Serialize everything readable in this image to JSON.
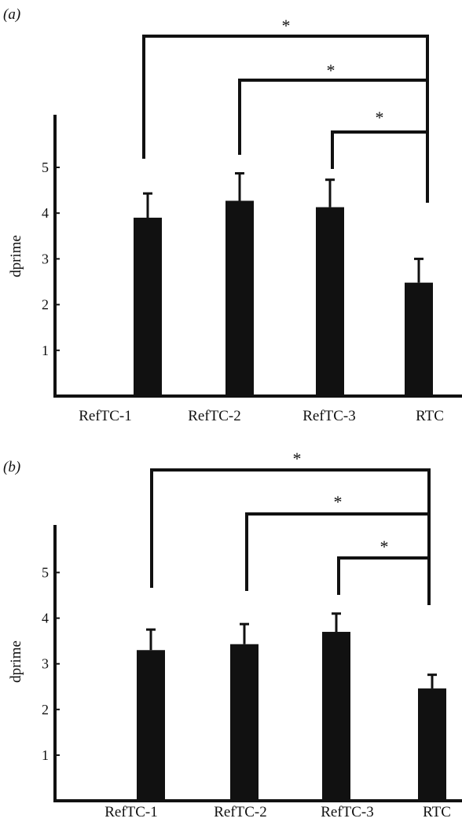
{
  "chart_data": [
    {
      "type": "bar",
      "panel_label": "(a)",
      "categories": [
        "RefTC-1",
        "RefTC-2",
        "RefTC-3",
        "RTC"
      ],
      "values": [
        3.9,
        4.27,
        4.13,
        2.48
      ],
      "errors": [
        0.53,
        0.6,
        0.6,
        0.52
      ],
      "ylabel": "dprime",
      "yticks": [
        1,
        2,
        3,
        4,
        5
      ],
      "ylim": [
        0,
        6.2
      ],
      "significance": [
        {
          "from": "RefTC-1",
          "to": "RTC",
          "label": "*"
        },
        {
          "from": "RefTC-2",
          "to": "RTC",
          "label": "*"
        },
        {
          "from": "RefTC-3",
          "to": "RTC",
          "label": "*"
        }
      ]
    },
    {
      "type": "bar",
      "panel_label": "(b)",
      "categories": [
        "RefTC-1",
        "RefTC-2",
        "RefTC-3",
        "RTC"
      ],
      "values": [
        3.3,
        3.43,
        3.7,
        2.46
      ],
      "errors": [
        0.45,
        0.44,
        0.4,
        0.3
      ],
      "ylabel": "dprime",
      "yticks": [
        1,
        2,
        3,
        4,
        5
      ],
      "ylim": [
        0,
        6.2
      ],
      "significance": [
        {
          "from": "RefTC-1",
          "to": "RTC",
          "label": "*"
        },
        {
          "from": "RefTC-2",
          "to": "RTC",
          "label": "*"
        },
        {
          "from": "RefTC-3",
          "to": "RTC",
          "label": "*"
        }
      ]
    }
  ]
}
